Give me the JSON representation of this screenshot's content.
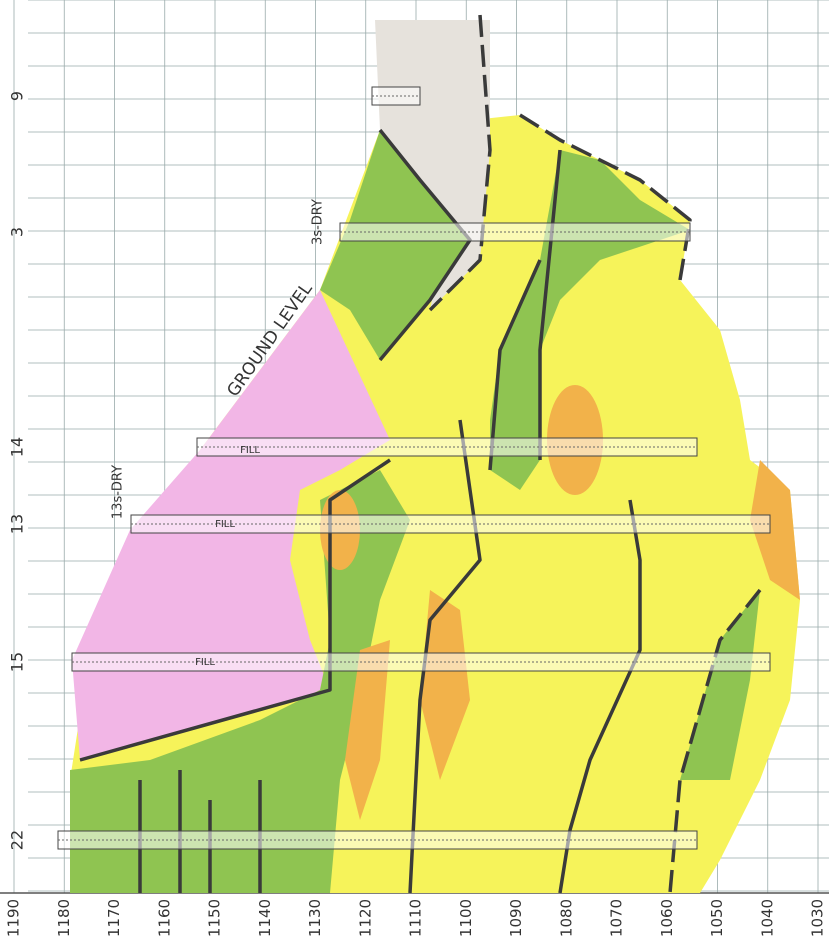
{
  "axis": {
    "labels": [
      1190,
      1180,
      1170,
      1160,
      1150,
      1140,
      1130,
      1120,
      1110,
      1100,
      1090,
      1080,
      1070,
      1060,
      1050,
      1040,
      1030
    ]
  },
  "boreholes": [
    {
      "label": "9"
    },
    {
      "label": "3"
    },
    {
      "label": "14"
    },
    {
      "label": "13"
    },
    {
      "label": "15"
    },
    {
      "label": "22"
    }
  ],
  "annotations": {
    "ground_level": "GROUND LEVEL",
    "dry_3": "3s-DRY",
    "dry_13": "13s-DRY",
    "fill": [
      "FILL",
      "FILL",
      "FILL"
    ]
  }
}
